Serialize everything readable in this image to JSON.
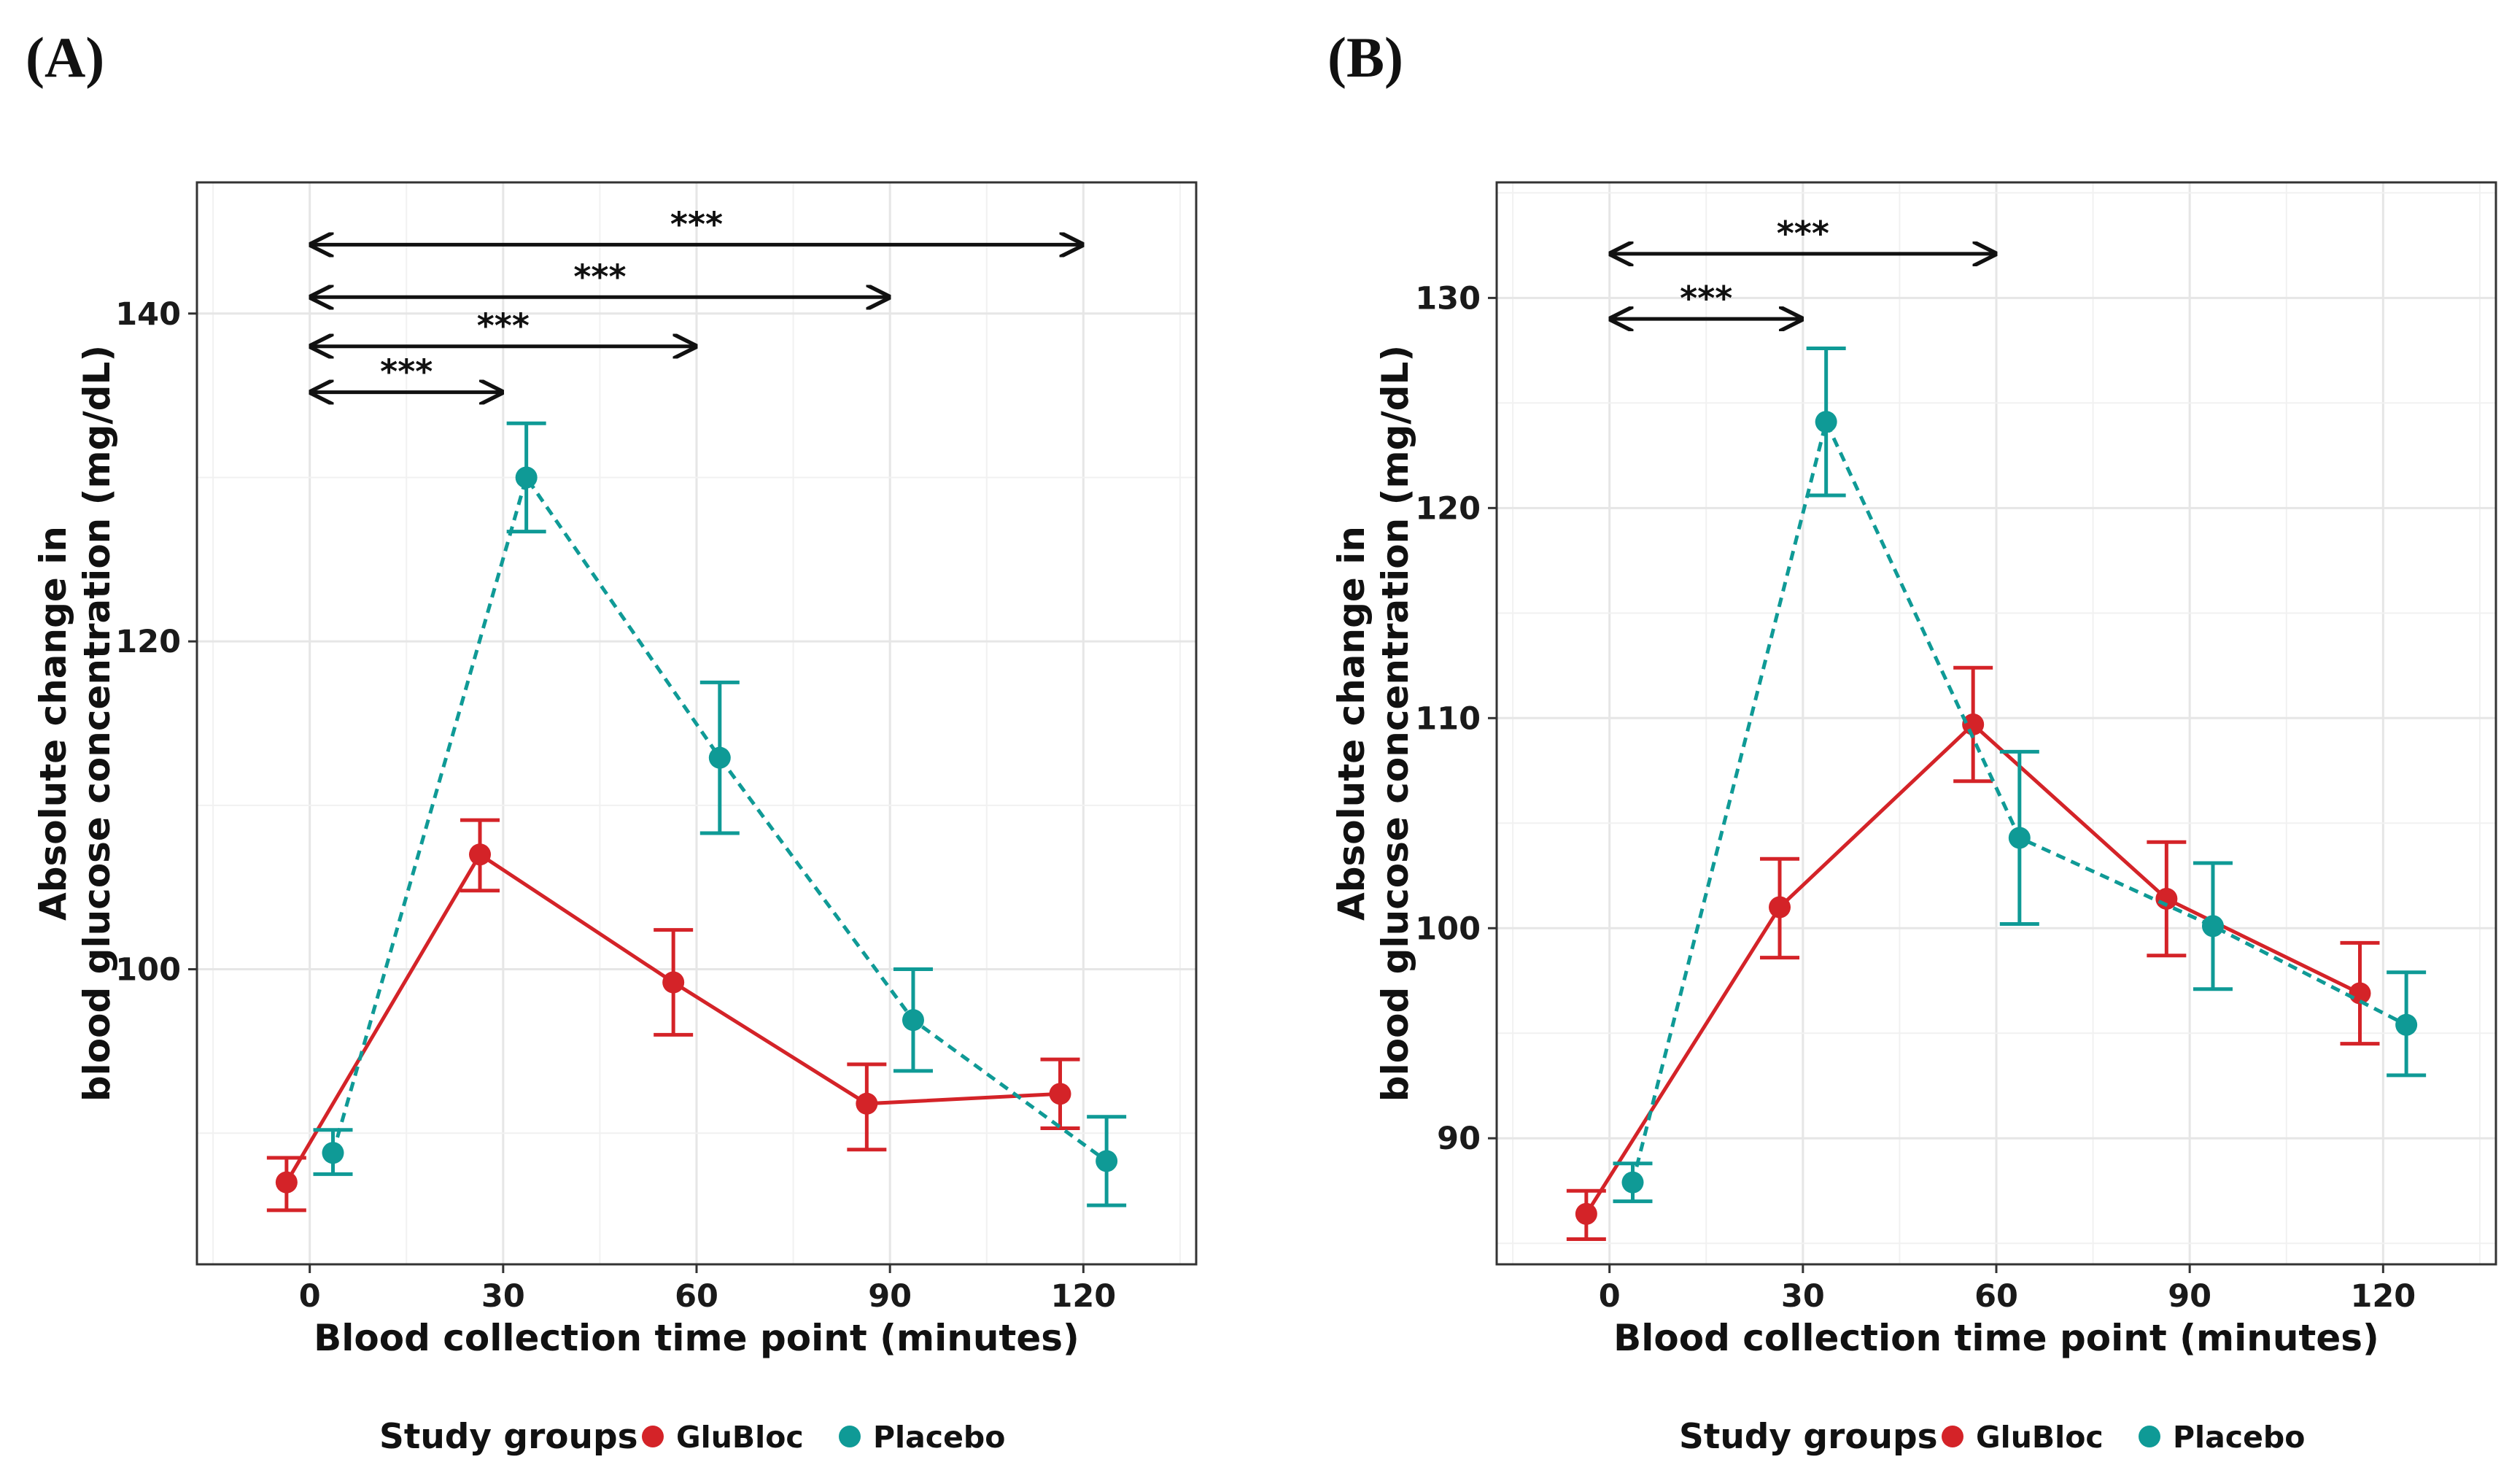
{
  "legend": {
    "title": "Study groups",
    "items": [
      {
        "label": "GluBloc",
        "color": "#d42328"
      },
      {
        "label": "Placebo",
        "color": "#0f9a96"
      }
    ]
  },
  "chart_data": [
    {
      "panel_label": "(A)",
      "type": "line",
      "xlabel": "Blood collection time point (minutes)",
      "ylabel": [
        "Absolute change in",
        "blood glucose concentration (mg/dL)"
      ],
      "x_ticks": [
        0,
        30,
        60,
        90,
        120
      ],
      "y_ticks": [
        100,
        120,
        140
      ],
      "xlim": [
        -17.5,
        137.5
      ],
      "ylim": [
        82,
        148
      ],
      "grid": true,
      "series": [
        {
          "name": "GluBloc",
          "color": "#d42328",
          "line": "solid",
          "points": [
            {
              "x": 0,
              "y": 87.0,
              "err_low": 85.3,
              "err_high": 88.5
            },
            {
              "x": 30,
              "y": 107.0,
              "err_low": 104.8,
              "err_high": 109.1
            },
            {
              "x": 60,
              "y": 99.2,
              "err_low": 96.0,
              "err_high": 102.4
            },
            {
              "x": 90,
              "y": 91.8,
              "err_low": 89.0,
              "err_high": 94.2
            },
            {
              "x": 120,
              "y": 92.4,
              "err_low": 90.3,
              "err_high": 94.5
            }
          ]
        },
        {
          "name": "Placebo",
          "color": "#0f9a96",
          "line": "dashed",
          "points": [
            {
              "x": 0,
              "y": 88.8,
              "err_low": 87.5,
              "err_high": 90.2
            },
            {
              "x": 30,
              "y": 130.0,
              "err_low": 126.7,
              "err_high": 133.3
            },
            {
              "x": 60,
              "y": 112.9,
              "err_low": 108.3,
              "err_high": 117.5
            },
            {
              "x": 90,
              "y": 96.9,
              "err_low": 93.8,
              "err_high": 100.0
            },
            {
              "x": 120,
              "y": 88.3,
              "err_low": 85.6,
              "err_high": 91.0
            }
          ]
        }
      ],
      "significance": [
        {
          "from": 0,
          "to": 30,
          "y": 135.2,
          "label": "***"
        },
        {
          "from": 0,
          "to": 60,
          "y": 138.0,
          "label": "***"
        },
        {
          "from": 0,
          "to": 90,
          "y": 141.0,
          "label": "***"
        },
        {
          "from": 0,
          "to": 120,
          "y": 144.2,
          "label": "***"
        }
      ]
    },
    {
      "panel_label": "(B)",
      "type": "line",
      "xlabel": "Blood collection time point (minutes)",
      "ylabel": [
        "Absolute change in",
        "blood glucose concentration (mg/dL)"
      ],
      "x_ticks": [
        0,
        30,
        60,
        90,
        120
      ],
      "y_ticks": [
        90,
        100,
        110,
        120,
        130
      ],
      "xlim": [
        -17.5,
        137.5
      ],
      "ylim": [
        84,
        135.5
      ],
      "grid": true,
      "series": [
        {
          "name": "GluBloc",
          "color": "#d42328",
          "line": "solid",
          "points": [
            {
              "x": 0,
              "y": 86.4,
              "err_low": 85.2,
              "err_high": 87.5
            },
            {
              "x": 30,
              "y": 101.0,
              "err_low": 98.6,
              "err_high": 103.3
            },
            {
              "x": 60,
              "y": 109.7,
              "err_low": 107.0,
              "err_high": 112.4
            },
            {
              "x": 90,
              "y": 101.4,
              "err_low": 98.7,
              "err_high": 104.1
            },
            {
              "x": 120,
              "y": 96.9,
              "err_low": 94.5,
              "err_high": 99.3
            }
          ]
        },
        {
          "name": "Placebo",
          "color": "#0f9a96",
          "line": "dashed",
          "points": [
            {
              "x": 0,
              "y": 87.9,
              "err_low": 87.0,
              "err_high": 88.8
            },
            {
              "x": 30,
              "y": 124.1,
              "err_low": 120.6,
              "err_high": 127.6
            },
            {
              "x": 60,
              "y": 104.3,
              "err_low": 100.2,
              "err_high": 108.4
            },
            {
              "x": 90,
              "y": 100.1,
              "err_low": 97.1,
              "err_high": 103.1
            },
            {
              "x": 120,
              "y": 95.4,
              "err_low": 93.0,
              "err_high": 97.9
            }
          ]
        }
      ],
      "significance": [
        {
          "from": 0,
          "to": 30,
          "y": 129.0,
          "label": "***"
        },
        {
          "from": 0,
          "to": 60,
          "y": 132.1,
          "label": "***"
        }
      ]
    }
  ]
}
